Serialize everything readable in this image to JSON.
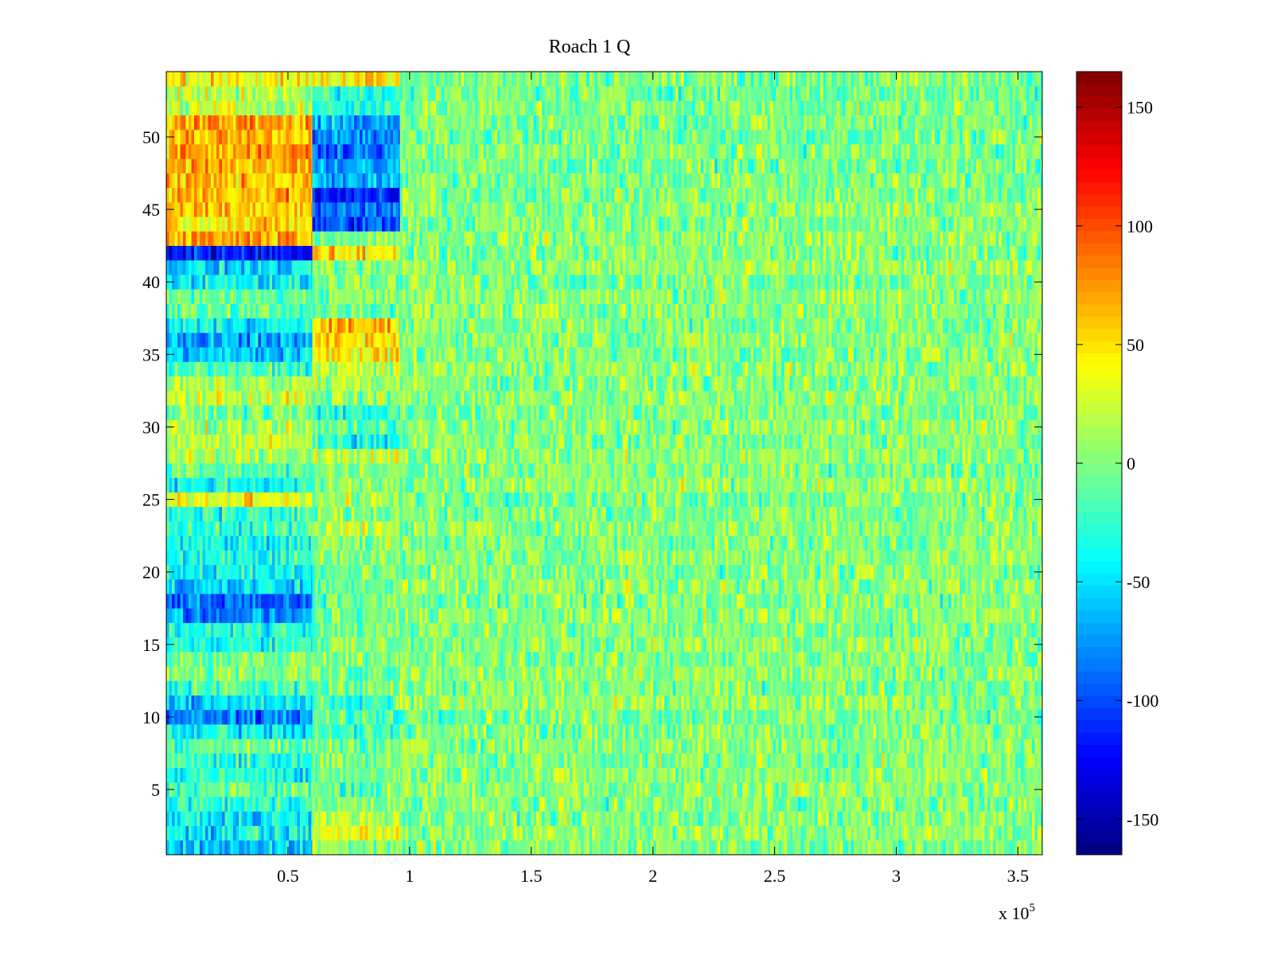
{
  "chart_data": {
    "type": "heatmap",
    "title": "Roach 1 Q",
    "xlabel": "",
    "ylabel": "",
    "x_multiplier_label": "x 10",
    "x_multiplier_exponent": "5",
    "xlim": [
      0,
      360000
    ],
    "ylim": [
      0.5,
      54.5
    ],
    "rows": 54,
    "x_ticks": [
      {
        "value": 50000,
        "label": "0.5"
      },
      {
        "value": 100000,
        "label": "1"
      },
      {
        "value": 150000,
        "label": "1.5"
      },
      {
        "value": 200000,
        "label": "2"
      },
      {
        "value": 250000,
        "label": "2.5"
      },
      {
        "value": 300000,
        "label": "3"
      },
      {
        "value": 350000,
        "label": "3.5"
      }
    ],
    "y_ticks": [
      {
        "value": 5,
        "label": "5"
      },
      {
        "value": 10,
        "label": "10"
      },
      {
        "value": 15,
        "label": "15"
      },
      {
        "value": 20,
        "label": "20"
      },
      {
        "value": 25,
        "label": "25"
      },
      {
        "value": 30,
        "label": "30"
      },
      {
        "value": 35,
        "label": "35"
      },
      {
        "value": 40,
        "label": "40"
      },
      {
        "value": 45,
        "label": "45"
      },
      {
        "value": 50,
        "label": "50"
      }
    ],
    "colorbar": {
      "colormap": "jet",
      "clim": [
        -165,
        165
      ],
      "ticks": [
        {
          "value": 150,
          "label": "150"
        },
        {
          "value": 100,
          "label": "100"
        },
        {
          "value": 50,
          "label": "50"
        },
        {
          "value": 0,
          "label": "0"
        },
        {
          "value": -50,
          "label": "-50"
        },
        {
          "value": -100,
          "label": "-100"
        },
        {
          "value": -150,
          "label": "-150"
        }
      ]
    },
    "segments": [
      {
        "x_range": [
          0,
          60000
        ],
        "row_means": [
          -60,
          -40,
          -45,
          -25,
          -10,
          -30,
          -30,
          -10,
          -45,
          -85,
          -50,
          -20,
          5,
          -5,
          -30,
          -30,
          -80,
          -90,
          -55,
          -40,
          -30,
          -35,
          -20,
          -25,
          35,
          -35,
          -10,
          10,
          20,
          15,
          -5,
          25,
          10,
          -20,
          -60,
          -70,
          -40,
          -10,
          -10,
          -40,
          -55,
          -120,
          75,
          50,
          60,
          65,
          60,
          65,
          75,
          65,
          70,
          20,
          20,
          40
        ]
      },
      {
        "x_range": [
          60000,
          96000
        ],
        "row_means": [
          10,
          35,
          20,
          0,
          -10,
          0,
          -5,
          0,
          -25,
          -15,
          -15,
          0,
          -5,
          5,
          0,
          -5,
          0,
          -5,
          -10,
          -10,
          0,
          0,
          15,
          5,
          10,
          0,
          0,
          20,
          -30,
          -10,
          -25,
          5,
          15,
          20,
          45,
          50,
          60,
          -5,
          0,
          0,
          5,
          45,
          0,
          -100,
          -90,
          -110,
          -60,
          -70,
          -85,
          -80,
          -70,
          -35,
          -25,
          50
        ]
      },
      {
        "x_range": [
          96000,
          360000
        ],
        "row_means": [
          0,
          5,
          0,
          0,
          5,
          5,
          0,
          5,
          0,
          0,
          5,
          0,
          5,
          0,
          5,
          0,
          5,
          0,
          5,
          0,
          5,
          0,
          5,
          0,
          0,
          5,
          0,
          5,
          0,
          5,
          0,
          5,
          0,
          5,
          0,
          5,
          0,
          5,
          5,
          0,
          5,
          0,
          5,
          0,
          5,
          0,
          0,
          -5,
          0,
          -5,
          0,
          0,
          -5,
          0
        ]
      }
    ],
    "noise_amplitude": 22
  }
}
